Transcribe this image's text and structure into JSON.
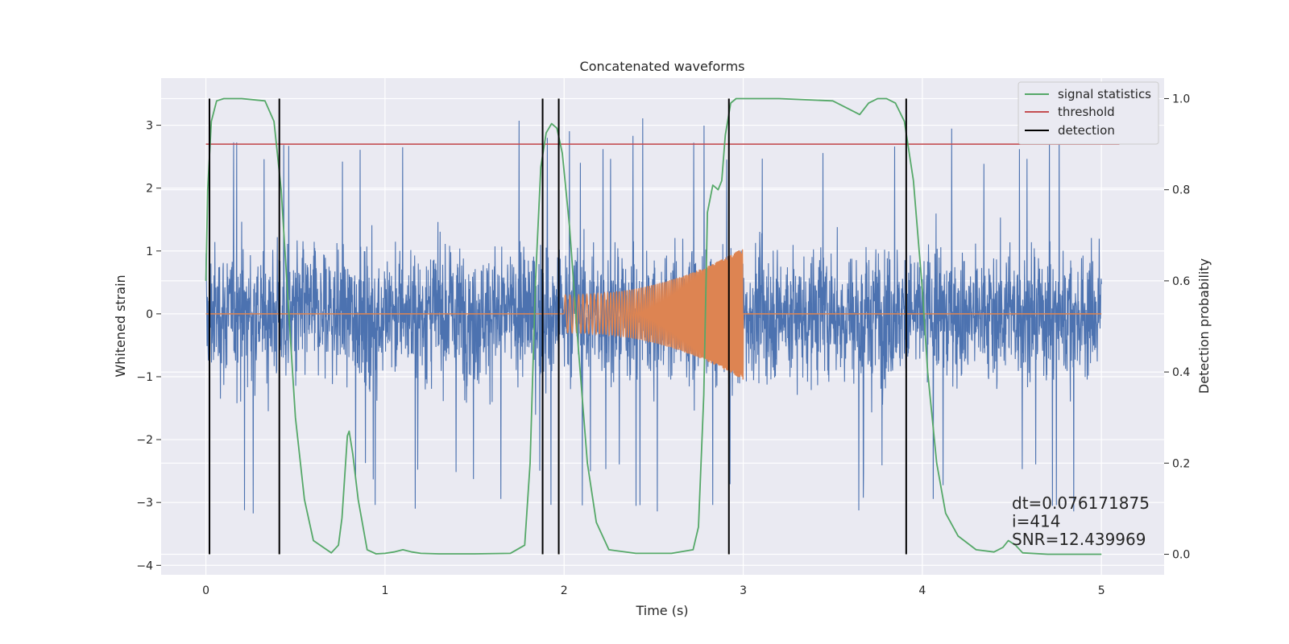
{
  "chart_data": {
    "type": "line",
    "title": "Concatenated waveforms",
    "xlabel": "Time (s)",
    "ylabel": "Whitened strain",
    "y2label": "Detection probability",
    "xlim": [
      -0.25,
      5.35
    ],
    "ylim": [
      -4.15,
      3.75
    ],
    "y2lim": [
      -0.045,
      1.045
    ],
    "xticks": [
      0,
      1,
      2,
      3,
      4,
      5
    ],
    "yticks": [
      -4,
      -3,
      -2,
      -1,
      0,
      1,
      2,
      3
    ],
    "y2ticks": [
      0.0,
      0.2,
      0.4,
      0.6,
      0.8,
      1.0
    ],
    "xtick_labels": [
      "0",
      "1",
      "2",
      "3",
      "4",
      "5"
    ],
    "ytick_labels": [
      "−4",
      "−3",
      "−2",
      "−1",
      "0",
      "1",
      "2",
      "3"
    ],
    "y2tick_labels": [
      "0.0",
      "0.2",
      "0.4",
      "0.6",
      "0.8",
      "1.0"
    ],
    "grid": true,
    "legend": {
      "position": "top-right",
      "entries": [
        {
          "label": "signal statistics",
          "color": "#55a868"
        },
        {
          "label": "threshold",
          "color": "#c44e52"
        },
        {
          "label": "detection",
          "color": "#000000"
        }
      ]
    },
    "series": [
      {
        "kind": "noise",
        "color": "#4c72b0",
        "x_range": [
          0,
          5
        ],
        "typical_range": [
          -1.5,
          1.5
        ],
        "max_peak": 3.4,
        "min_peak": -3.8
      },
      {
        "kind": "chirp",
        "color": "#dd8452",
        "x_range": [
          2.0,
          3.0
        ],
        "amplitude_start": 0.3,
        "amplitude_end": 1.05
      },
      {
        "name": "signal statistics",
        "axis": "right",
        "color": "#55a868",
        "x": [
          0,
          0.01,
          0.03,
          0.06,
          0.1,
          0.2,
          0.33,
          0.38,
          0.42,
          0.46,
          0.5,
          0.55,
          0.6,
          0.7,
          0.74,
          0.76,
          0.79,
          0.8,
          0.82,
          0.85,
          0.9,
          0.95,
          1.0,
          1.05,
          1.1,
          1.15,
          1.2,
          1.3,
          1.5,
          1.7,
          1.78,
          1.81,
          1.84,
          1.87,
          1.9,
          1.93,
          1.96,
          1.99,
          2.03,
          2.08,
          2.13,
          2.18,
          2.25,
          2.4,
          2.6,
          2.72,
          2.75,
          2.78,
          2.8,
          2.83,
          2.86,
          2.88,
          2.9,
          2.93,
          2.96,
          3.0,
          3.2,
          3.5,
          3.6,
          3.65,
          3.7,
          3.75,
          3.8,
          3.85,
          3.9,
          3.95,
          4.0,
          4.03,
          4.08,
          4.13,
          4.2,
          4.3,
          4.4,
          4.45,
          4.48,
          4.52,
          4.56,
          4.7,
          5.0
        ],
        "y": [
          0.6,
          0.8,
          0.95,
          0.995,
          1.0,
          1.0,
          0.995,
          0.95,
          0.8,
          0.55,
          0.3,
          0.12,
          0.03,
          0.003,
          0.02,
          0.08,
          0.26,
          0.27,
          0.22,
          0.12,
          0.01,
          0.001,
          0.002,
          0.005,
          0.01,
          0.005,
          0.002,
          0.001,
          0.001,
          0.002,
          0.02,
          0.2,
          0.6,
          0.85,
          0.925,
          0.945,
          0.935,
          0.88,
          0.72,
          0.45,
          0.2,
          0.07,
          0.01,
          0.002,
          0.002,
          0.01,
          0.06,
          0.35,
          0.75,
          0.81,
          0.8,
          0.82,
          0.92,
          0.99,
          1.0,
          1.0,
          1.0,
          0.995,
          0.975,
          0.965,
          0.99,
          1.0,
          1.0,
          0.99,
          0.95,
          0.82,
          0.58,
          0.4,
          0.2,
          0.09,
          0.04,
          0.01,
          0.005,
          0.015,
          0.03,
          0.02,
          0.003,
          0.0,
          0.0
        ]
      },
      {
        "name": "threshold",
        "axis": "right",
        "color": "#c44e52",
        "x": [
          0,
          5.1
        ],
        "y": [
          0.9,
          0.9
        ]
      },
      {
        "name": "detection",
        "axis": "right",
        "color": "#000000",
        "vlines": [
          0.02,
          0.41,
          1.88,
          1.97,
          2.92,
          3.91
        ],
        "y_range": [
          0.0,
          1.0
        ]
      }
    ],
    "annotations": [
      {
        "text": "dt=0.076171875",
        "x": 4.5,
        "y2": 0.1
      },
      {
        "text": " i=414",
        "x": 4.5,
        "y2": 0.06
      },
      {
        "text": "SNR=12.439969",
        "x": 4.5,
        "y2": 0.02
      }
    ]
  }
}
